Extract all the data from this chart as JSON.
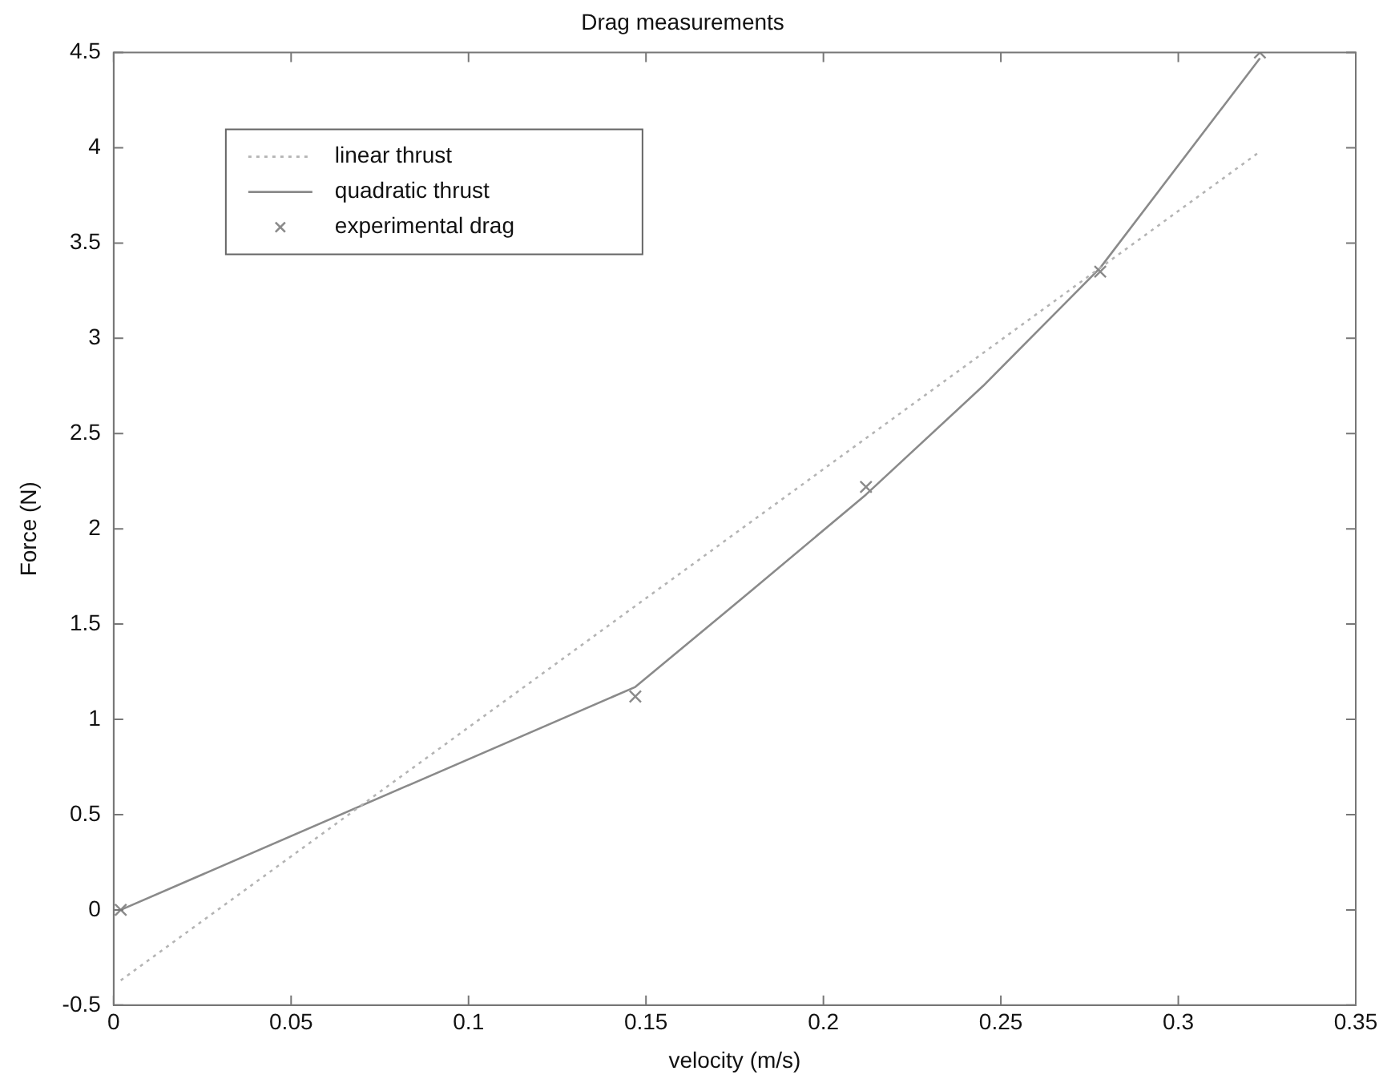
{
  "chart_data": {
    "type": "line",
    "title": "Drag measurements",
    "xlabel": "velocity (m/s)",
    "ylabel": "Force (N)",
    "xlim": [
      0,
      0.35
    ],
    "xticks": [
      0,
      0.05,
      0.1,
      0.15,
      0.2,
      0.25,
      0.3,
      0.35
    ],
    "ylim": [
      -0.5,
      4.5
    ],
    "yticks": [
      -0.5,
      0,
      0.5,
      1,
      1.5,
      2,
      2.5,
      3,
      3.5,
      4,
      4.5
    ],
    "grid": false,
    "legend": "top left",
    "series": [
      {
        "name": "linear thrust",
        "type": "line",
        "color": "#b4b4b4",
        "line_style": "dotted",
        "marker": "none",
        "x": [
          0.002,
          0.323
        ],
        "values": [
          -0.37,
          3.98
        ]
      },
      {
        "name": "quadratic thrust",
        "type": "line",
        "color": "#8a8a8a",
        "line_style": "solid",
        "marker": "none",
        "x": [
          0.002,
          0.147,
          0.18,
          0.212,
          0.245,
          0.278,
          0.323
        ],
        "values": [
          0,
          1.17,
          1.68,
          2.18,
          2.75,
          3.37,
          4.47
        ]
      },
      {
        "name": "experimental drag",
        "type": "scatter",
        "color": "#8a8a8a",
        "marker": "cross",
        "x": [
          0.002,
          0.147,
          0.212,
          0.278,
          0.323
        ],
        "values": [
          0,
          1.12,
          2.22,
          3.35,
          4.5
        ]
      }
    ]
  }
}
